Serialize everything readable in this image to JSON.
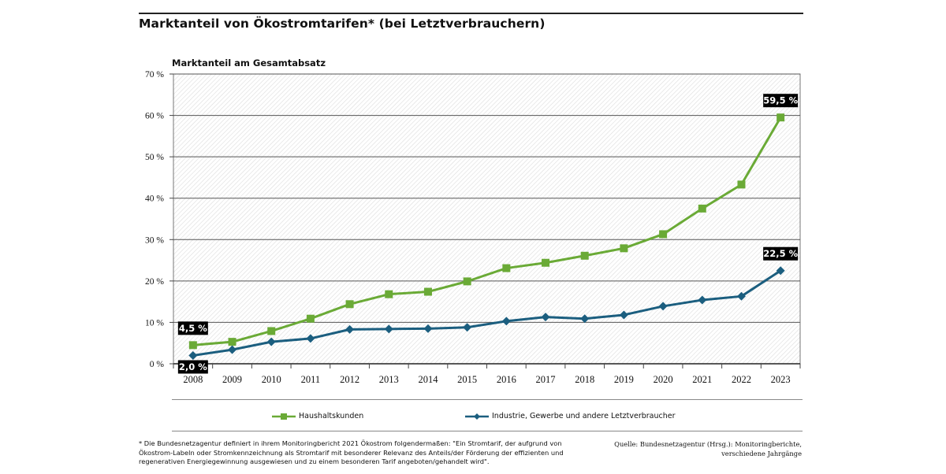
{
  "title": "Marktanteil von Ökostromtarifen* (bei Letztverbrauchern)",
  "footnote": "* Die Bundesnetzagentur definiert in ihrem Monitoringbericht 2021 Ökostrom folgendermaßen: \"Ein Stromtarif, der aufgrund von Ökostrom-Labeln oder Stromkennzeichnung als Stromtarif mit besonderer Relevanz des Anteils/der Förderung der effizienten und regenerativen Energiegewinnung ausgewiesen und zu einem besonderen Tarif angeboten/gehandelt wird\".",
  "source_line1": "Quelle: Bundesnetzagentur (Hrsg.): Monitoringberichte,",
  "source_line2": "verschiedene Jahrgänge",
  "colors": {
    "green": "#6aaa36",
    "blue": "#1b5e7f",
    "callout_bg": "#000000"
  },
  "chart_data": {
    "type": "line",
    "ylabel": "Marktanteil am Gesamtabsatz",
    "xlabel": "",
    "ylim": [
      0,
      70
    ],
    "yticks": [
      0,
      10,
      20,
      30,
      40,
      50,
      60,
      70
    ],
    "ytick_labels": [
      "0 %",
      "10 %",
      "20 %",
      "30 %",
      "40 %",
      "50 %",
      "60 %",
      "70 %"
    ],
    "categories": [
      "2008",
      "2009",
      "2010",
      "2011",
      "2012",
      "2013",
      "2014",
      "2015",
      "2016",
      "2017",
      "2018",
      "2019",
      "2020",
      "2021",
      "2022",
      "2023"
    ],
    "grid": true,
    "legend_position": "bottom",
    "series": [
      {
        "name": "Haushaltskunden",
        "marker": "square",
        "color": "#6aaa36",
        "values": [
          4.5,
          5.3,
          7.9,
          10.9,
          14.4,
          16.8,
          17.4,
          19.9,
          23.1,
          24.4,
          26.1,
          27.9,
          31.3,
          37.5,
          43.3,
          59.5
        ]
      },
      {
        "name": "Industrie, Gewerbe und andere Letztverbraucher",
        "marker": "diamond",
        "color": "#1b5e7f",
        "values": [
          2.0,
          3.4,
          5.3,
          6.1,
          8.3,
          8.4,
          8.5,
          8.8,
          10.3,
          11.3,
          10.9,
          11.8,
          13.9,
          15.4,
          16.3,
          22.5
        ]
      }
    ],
    "annotations": [
      {
        "series": 0,
        "index": 0,
        "label": "4,5 %",
        "side": "above"
      },
      {
        "series": 1,
        "index": 0,
        "label": "2,0 %",
        "side": "below"
      },
      {
        "series": 0,
        "index": 15,
        "label": "59,5 %",
        "side": "above"
      },
      {
        "series": 1,
        "index": 15,
        "label": "22,5 %",
        "side": "above"
      }
    ]
  }
}
